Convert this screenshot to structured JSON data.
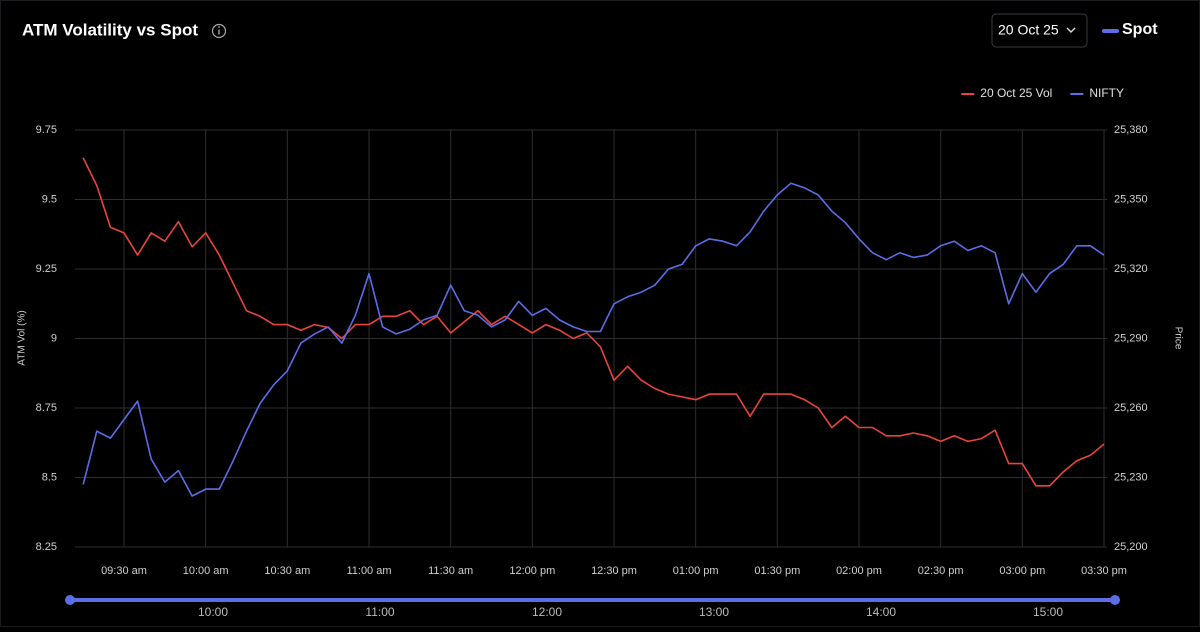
{
  "controls": {
    "expiry": "20 Oct 25",
    "toggle": "Spot"
  },
  "navigator": {
    "labels": [
      "10:00",
      "11:00",
      "12:00",
      "13:00",
      "14:00",
      "15:00"
    ]
  },
  "chart_data": {
    "type": "line",
    "title": "ATM Volatility vs Spot",
    "y_label": "ATM Vol (%)",
    "y2_label": "Price",
    "x": [
      "09:15",
      "09:20",
      "09:25",
      "09:30",
      "09:35",
      "09:40",
      "09:45",
      "09:50",
      "09:55",
      "10:00",
      "10:05",
      "10:10",
      "10:15",
      "10:20",
      "10:25",
      "10:30",
      "10:35",
      "10:40",
      "10:45",
      "10:50",
      "10:55",
      "11:00",
      "11:05",
      "11:10",
      "11:15",
      "11:20",
      "11:25",
      "11:30",
      "11:35",
      "11:40",
      "11:45",
      "11:50",
      "11:55",
      "12:00",
      "12:05",
      "12:10",
      "12:15",
      "12:20",
      "12:25",
      "12:30",
      "12:35",
      "12:40",
      "12:45",
      "12:50",
      "12:55",
      "13:00",
      "13:05",
      "13:10",
      "13:15",
      "13:20",
      "13:25",
      "13:30",
      "13:35",
      "13:40",
      "13:45",
      "13:50",
      "13:55",
      "14:00",
      "14:05",
      "14:10",
      "14:15",
      "14:20",
      "14:25",
      "14:30",
      "14:35",
      "14:40",
      "14:45",
      "14:50",
      "14:55",
      "15:00",
      "15:05",
      "15:10",
      "15:15",
      "15:20",
      "15:25",
      "15:30"
    ],
    "xlim": [
      "09:12",
      "15:30"
    ],
    "xticks": [
      {
        "value": "09:30",
        "label": "09:30 am"
      },
      {
        "value": "10:00",
        "label": "10:00 am"
      },
      {
        "value": "10:30",
        "label": "10:30 am"
      },
      {
        "value": "11:00",
        "label": "11:00 am"
      },
      {
        "value": "11:30",
        "label": "11:30 am"
      },
      {
        "value": "12:00",
        "label": "12:00 pm"
      },
      {
        "value": "12:30",
        "label": "12:30 pm"
      },
      {
        "value": "13:00",
        "label": "01:00 pm"
      },
      {
        "value": "13:30",
        "label": "01:30 pm"
      },
      {
        "value": "14:00",
        "label": "02:00 pm"
      },
      {
        "value": "14:30",
        "label": "02:30 pm"
      },
      {
        "value": "15:00",
        "label": "03:00 pm"
      },
      {
        "value": "15:30",
        "label": "03:30 pm"
      }
    ],
    "ylim": [
      8.25,
      9.75
    ],
    "yticks": [
      8.25,
      8.5,
      8.75,
      9,
      9.25,
      9.5,
      9.75
    ],
    "y2lim": [
      25200,
      25380
    ],
    "y2ticks": [
      {
        "value": 25200,
        "label": "25,200"
      },
      {
        "value": 25230,
        "label": "25,230"
      },
      {
        "value": 25260,
        "label": "25,260"
      },
      {
        "value": 25290,
        "label": "25,290"
      },
      {
        "value": 25320,
        "label": "25,320"
      },
      {
        "value": 25350,
        "label": "25,350"
      },
      {
        "value": 25380,
        "label": "25,380"
      }
    ],
    "grid": true,
    "legend": "top-right",
    "series": [
      {
        "name": "20 Oct 25 Vol",
        "color": "#e8453c",
        "values": [
          9.65,
          9.55,
          9.4,
          9.38,
          9.3,
          9.38,
          9.35,
          9.42,
          9.33,
          9.38,
          9.3,
          9.2,
          9.1,
          9.08,
          9.05,
          9.05,
          9.03,
          9.05,
          9.04,
          9.0,
          9.05,
          9.05,
          9.08,
          9.08,
          9.1,
          9.05,
          9.08,
          9.02,
          9.06,
          9.1,
          9.05,
          9.08,
          9.05,
          9.02,
          9.05,
          9.03,
          9.0,
          9.02,
          8.97,
          8.85,
          8.9,
          8.85,
          8.82,
          8.8,
          8.79,
          8.78,
          8.8,
          8.8,
          8.8,
          8.72,
          8.8,
          8.8,
          8.8,
          8.78,
          8.75,
          8.68,
          8.72,
          8.68,
          8.68,
          8.65,
          8.65,
          8.66,
          8.65,
          8.63,
          8.65,
          8.63,
          8.64,
          8.67,
          8.55,
          8.55,
          8.47,
          8.47,
          8.52,
          8.56,
          8.58,
          8.62
        ]
      },
      {
        "name": "NIFTY",
        "color": "#5b6ee8",
        "axis": "y2",
        "values": [
          25227,
          25250,
          25247,
          25255,
          25263,
          25238,
          25228,
          25233,
          25222,
          25225,
          25225,
          25237,
          25250,
          25262,
          25270,
          25276,
          25288,
          25292,
          25295,
          25288,
          25300,
          25318,
          25295,
          25292,
          25294,
          25298,
          25300,
          25313,
          25302,
          25300,
          25295,
          25298,
          25306,
          25300,
          25303,
          25298,
          25295,
          25293,
          25293,
          25305,
          25308,
          25310,
          25313,
          25320,
          25322,
          25330,
          25333,
          25332,
          25330,
          25336,
          25345,
          25352,
          25357,
          25355,
          25352,
          25345,
          25340,
          25333,
          25327,
          25324,
          25327,
          25325,
          25326,
          25330,
          25332,
          25328,
          25330,
          25327,
          25305,
          25318,
          25310,
          25318,
          25322,
          25330,
          25330,
          25326
        ]
      }
    ]
  }
}
